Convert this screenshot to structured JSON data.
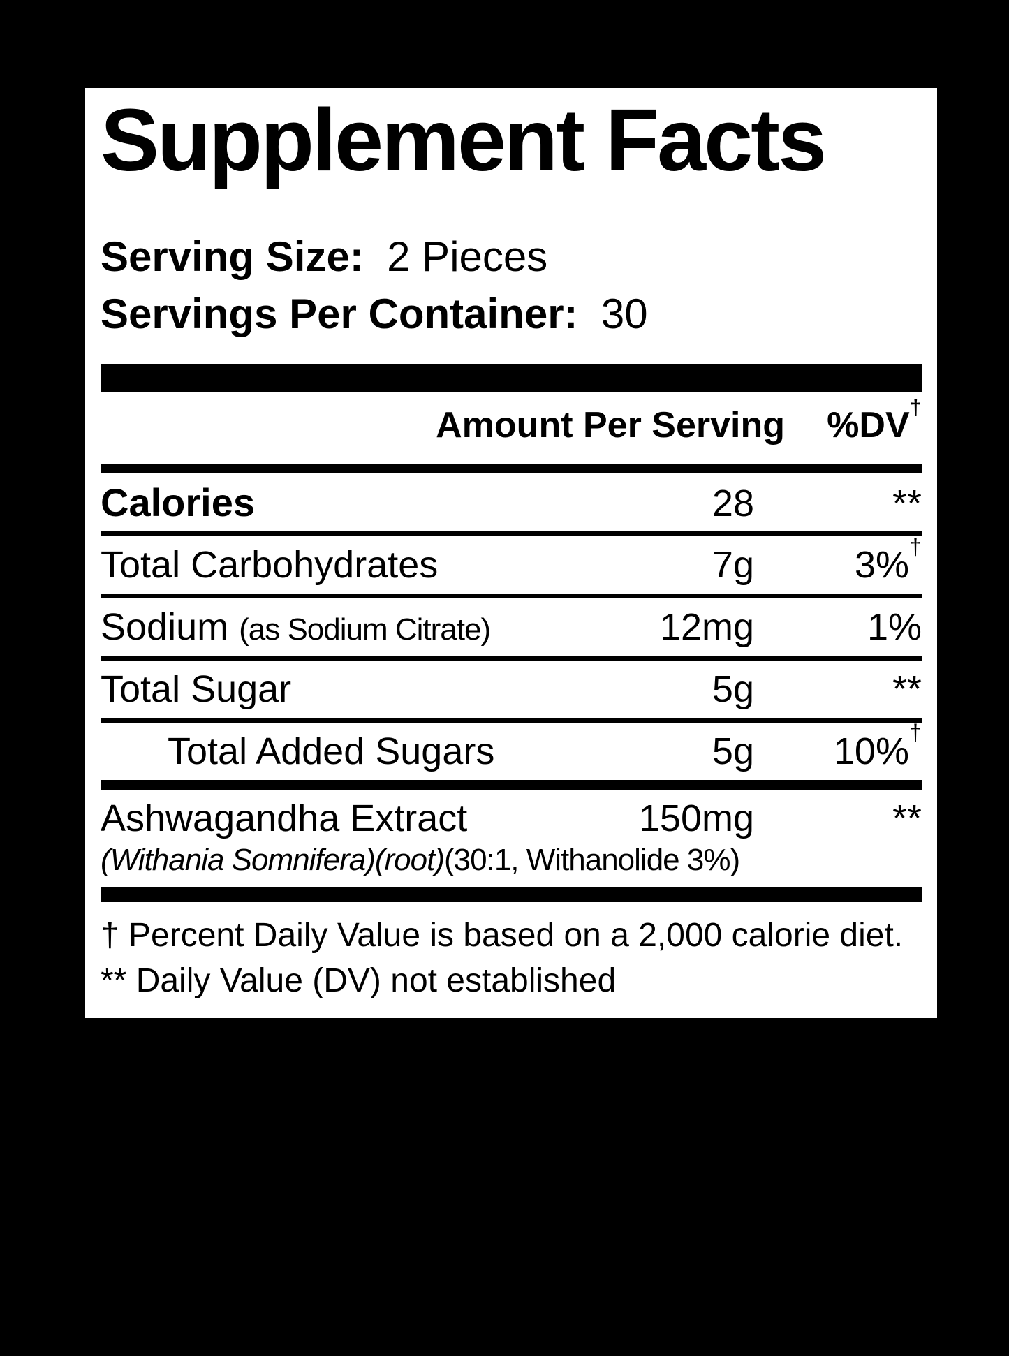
{
  "panel": {
    "title": "Supplement Facts",
    "serving_size": {
      "label": "Serving Size:",
      "value": "2 Pieces"
    },
    "servings_per_container": {
      "label": "Servings Per Container:",
      "value": "30"
    },
    "header": {
      "amount": "Amount Per Serving",
      "dv": "%DV",
      "dv_sup": "†"
    },
    "rows": [
      {
        "label": "Calories",
        "amount": "28",
        "dv": "**"
      },
      {
        "label": "Total Carbohydrates",
        "amount": "7g",
        "dv": "3%",
        "dv_sup": "†"
      },
      {
        "label": "Sodium",
        "label_note": "(as Sodium Citrate)",
        "amount": "12mg",
        "dv": "1%"
      },
      {
        "label": "Total Sugar",
        "amount": "5g",
        "dv": "**"
      },
      {
        "label": "Total Added Sugars",
        "amount": "5g",
        "dv": "10%",
        "dv_sup": "†"
      },
      {
        "label": "Ashwagandha Extract",
        "amount": "150mg",
        "dv": "**",
        "subline_italic": "(Withania Somnifera)(root)",
        "subline_regular": "(30:1, Withanolide 3%)"
      }
    ],
    "footnotes": [
      "† Percent Daily Value is based on a 2,000 calorie diet.",
      "** Daily Value (DV) not established"
    ],
    "colors": {
      "background": "#000000",
      "panel": "#ffffff",
      "text": "#000000"
    }
  }
}
